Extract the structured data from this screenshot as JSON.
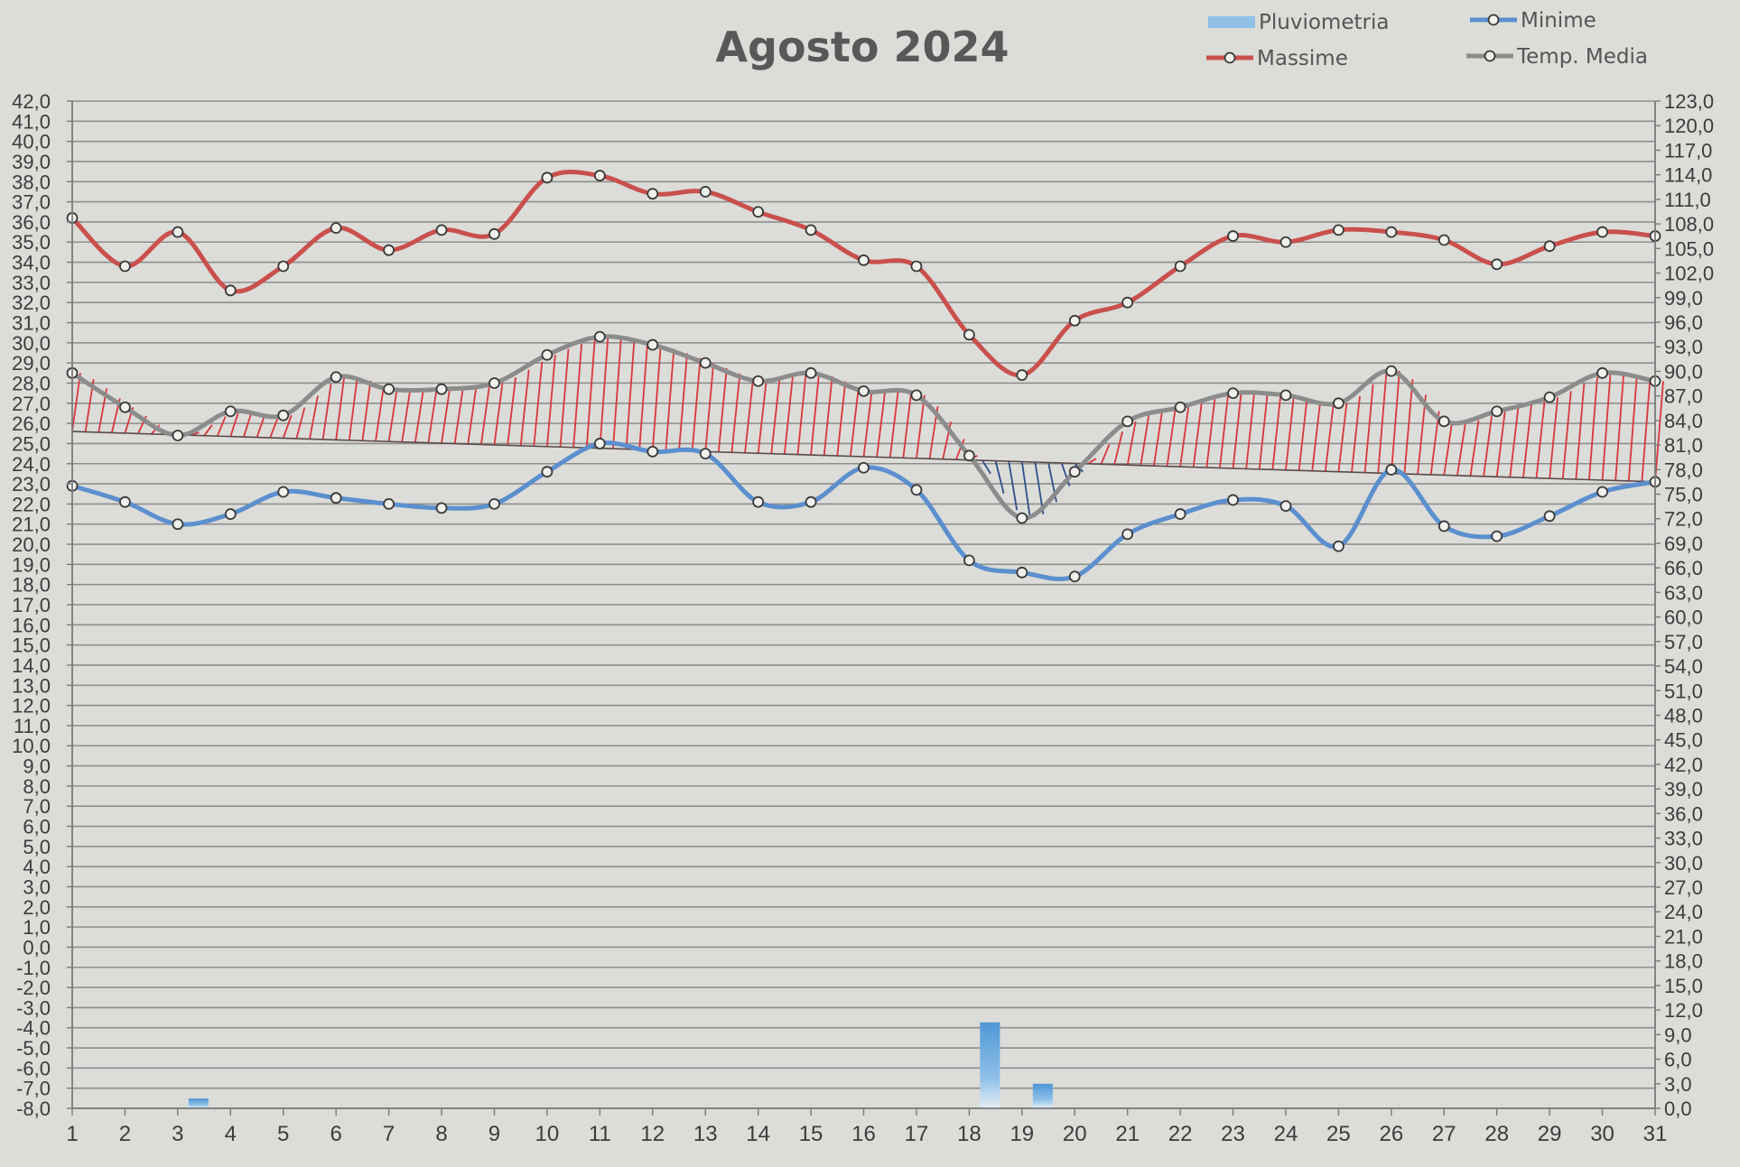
{
  "chart_data": {
    "type": "line",
    "title": "Agosto 2024",
    "categories": [
      "1",
      "2",
      "3",
      "4",
      "5",
      "6",
      "7",
      "8",
      "9",
      "10",
      "11",
      "12",
      "13",
      "14",
      "15",
      "16",
      "17",
      "18",
      "19",
      "20",
      "21",
      "22",
      "23",
      "24",
      "25",
      "26",
      "27",
      "28",
      "29",
      "30",
      "31"
    ],
    "y_left": {
      "min": -8.0,
      "max": 42.0,
      "step": 1.0
    },
    "y_right": {
      "min": 0.0,
      "max": 123.0,
      "step": 3.0
    },
    "grid": true,
    "legend_position": "top-right",
    "legend": [
      {
        "key": "pluviometria",
        "label": "Pluviometria"
      },
      {
        "key": "minime",
        "label": "Minime"
      },
      {
        "key": "massime",
        "label": "Massime"
      },
      {
        "key": "media",
        "label": "Temp. Media"
      }
    ],
    "series": [
      {
        "key": "massime",
        "name": "Massime",
        "axis": "left",
        "color": "#c9504c",
        "values": [
          36.2,
          33.8,
          35.5,
          32.6,
          33.8,
          35.7,
          34.6,
          35.6,
          35.4,
          38.2,
          38.3,
          37.4,
          37.5,
          36.5,
          35.6,
          34.1,
          33.8,
          30.4,
          28.4,
          31.1,
          32.0,
          33.8,
          35.3,
          35.0,
          35.6,
          35.5,
          35.1,
          33.9,
          34.8,
          35.5,
          35.3
        ]
      },
      {
        "key": "minime",
        "name": "Minime",
        "axis": "left",
        "color": "#5b8fce",
        "values": [
          22.9,
          22.1,
          21.0,
          21.5,
          22.6,
          22.3,
          22.0,
          21.8,
          22.0,
          23.6,
          25.0,
          24.6,
          24.5,
          22.1,
          22.1,
          23.8,
          22.7,
          19.2,
          18.6,
          18.4,
          20.5,
          21.5,
          22.2,
          21.9,
          19.9,
          23.7,
          20.9,
          20.4,
          21.4,
          22.6,
          23.1
        ]
      },
      {
        "key": "media",
        "name": "Temp. Media",
        "axis": "left",
        "color": "#8c8c8c",
        "values": [
          28.5,
          26.8,
          25.4,
          26.6,
          26.4,
          28.3,
          27.7,
          27.7,
          28.0,
          29.4,
          30.3,
          29.9,
          29.0,
          28.1,
          28.5,
          27.6,
          27.4,
          24.4,
          21.3,
          23.6,
          26.1,
          26.8,
          27.5,
          27.4,
          27.0,
          28.6,
          26.1,
          26.6,
          27.3,
          28.5,
          28.1
        ]
      },
      {
        "key": "pluviometria",
        "name": "Pluviometria",
        "axis": "right",
        "type": "bar",
        "color": "#6fa8d8",
        "values": [
          0,
          0,
          1.2,
          0,
          0,
          0,
          0,
          0,
          0,
          0,
          0,
          0,
          0,
          0,
          0,
          0,
          0,
          10.5,
          3.0,
          0,
          0,
          0,
          0,
          0,
          0,
          0,
          0,
          0,
          0,
          0,
          0
        ]
      }
    ],
    "reference_line": {
      "start": 25.6,
      "end": 23.1
    },
    "hatch_colors": {
      "above": "#d9363b",
      "below": "#2f4f8a"
    }
  }
}
